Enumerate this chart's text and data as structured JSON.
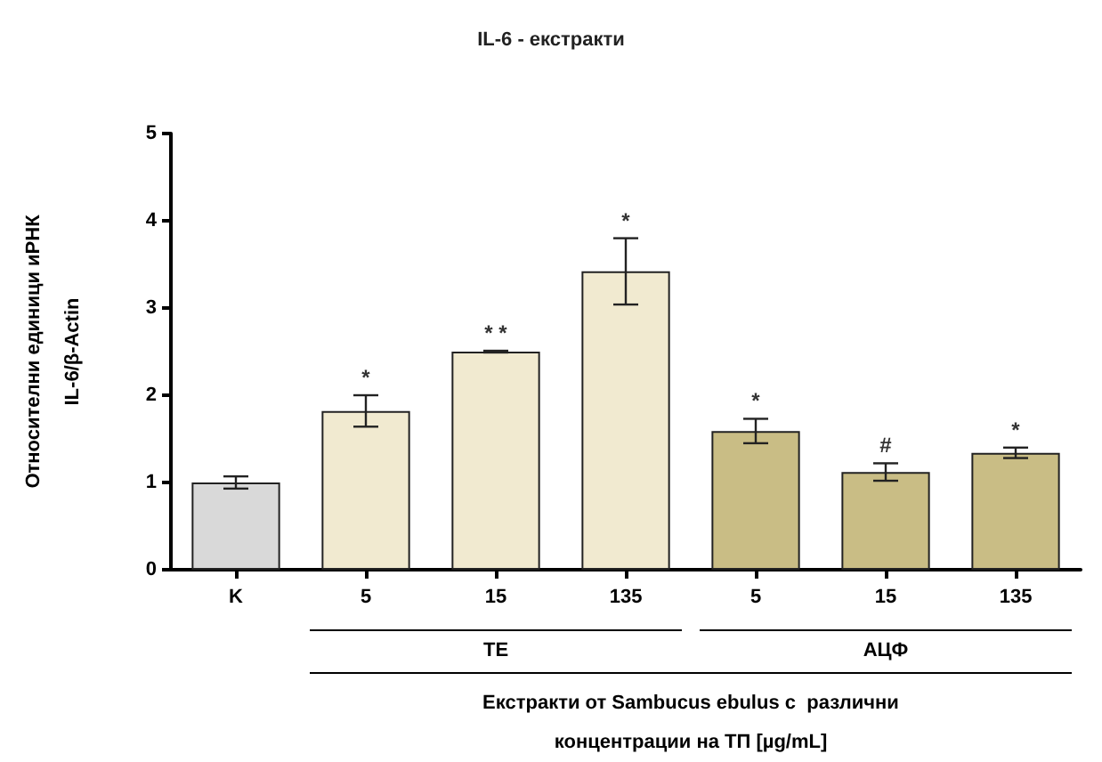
{
  "chart_data": {
    "type": "bar",
    "title": "IL-6 - екстракти",
    "categories": [
      "K",
      "5",
      "15",
      "135",
      "5",
      "15",
      "135"
    ],
    "values": [
      1.0,
      1.82,
      2.5,
      3.42,
      1.59,
      1.12,
      1.34
    ],
    "errors": [
      0.07,
      0.18,
      0.01,
      0.38,
      0.14,
      0.1,
      0.06
    ],
    "colors": [
      "#d9d9d9",
      "#f1ead0",
      "#f1ead0",
      "#f1ead0",
      "#c9bd85",
      "#c9bd85",
      "#c9bd85"
    ],
    "value_labels": [
      null,
      "*",
      "* *",
      "*",
      "*",
      "#",
      "*"
    ],
    "ylabel": "Относителни единици иРНК\nIL-6/β-Actin",
    "xlabel": "Екстракти от Sambucus ebulus с  различни\nконцентрации на ТП [µg/mL]",
    "annotations": [
      "ТЕ",
      "АЦФ"
    ],
    "ylim": [
      0,
      5
    ],
    "yticks": [
      0,
      1,
      2,
      3,
      4,
      5
    ],
    "grid": false
  }
}
